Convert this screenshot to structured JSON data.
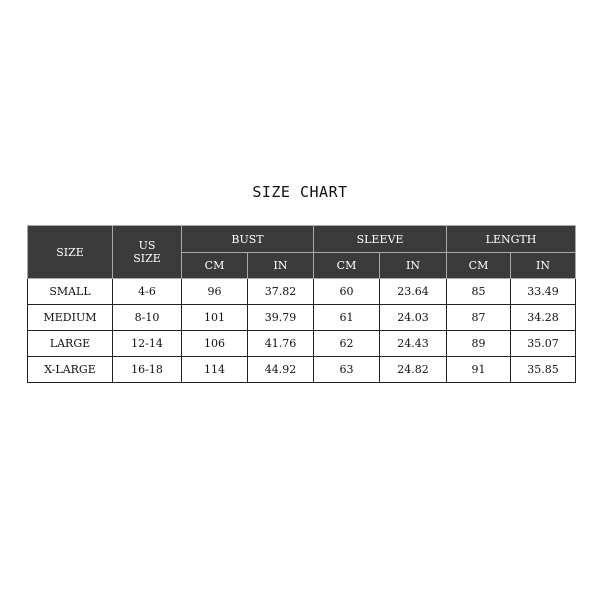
{
  "title": "SIZE CHART",
  "headers": {
    "size": "SIZE",
    "us_size_line1": "US",
    "us_size_line2": "SIZE",
    "bust": "BUST",
    "sleeve": "SLEEVE",
    "length": "LENGTH",
    "cm": "CM",
    "in": "IN"
  },
  "rows": [
    {
      "size": "SMALL",
      "us": "4-6",
      "bust_cm": "96",
      "bust_in": "37.82",
      "sleeve_cm": "60",
      "sleeve_in": "23.64",
      "length_cm": "85",
      "length_in": "33.49"
    },
    {
      "size": "MEDIUM",
      "us": "8-10",
      "bust_cm": "101",
      "bust_in": "39.79",
      "sleeve_cm": "61",
      "sleeve_in": "24.03",
      "length_cm": "87",
      "length_in": "34.28"
    },
    {
      "size": "LARGE",
      "us": "12-14",
      "bust_cm": "106",
      "bust_in": "41.76",
      "sleeve_cm": "62",
      "sleeve_in": "24.43",
      "length_cm": "89",
      "length_in": "35.07"
    },
    {
      "size": "X-LARGE",
      "us": "16-18",
      "bust_cm": "114",
      "bust_in": "44.92",
      "sleeve_cm": "63",
      "sleeve_in": "24.82",
      "length_cm": "91",
      "length_in": "35.85"
    }
  ],
  "colors": {
    "header_bg": "#3b3b3b",
    "header_text": "#ffffff"
  }
}
